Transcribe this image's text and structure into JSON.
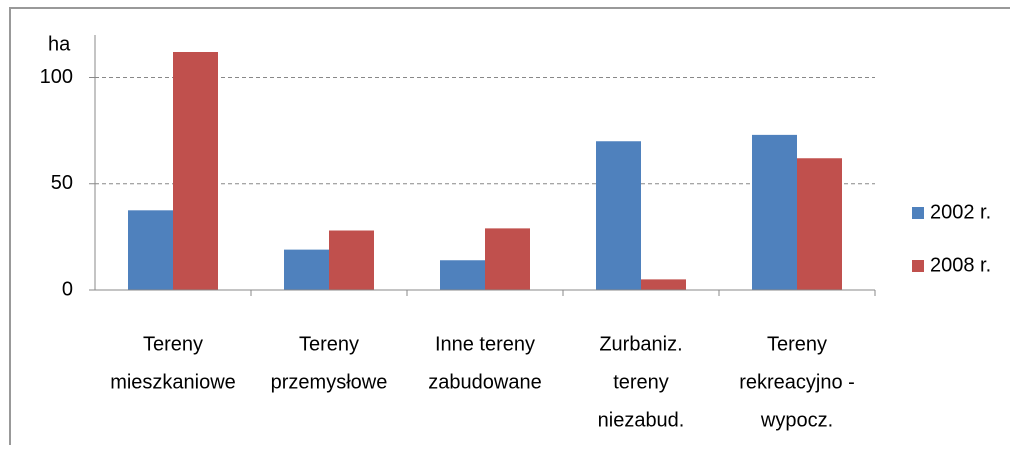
{
  "chart_data": {
    "type": "bar",
    "y_label": "ha",
    "categories": [
      [
        "Tereny",
        "mieszkaniowe"
      ],
      [
        "Tereny",
        "przemysłowe"
      ],
      [
        "Inne tereny",
        "zabudowane"
      ],
      [
        "Zurbaniz.",
        "tereny",
        "niezabud."
      ],
      [
        "Tereny",
        "rekreacyjno -",
        "wypocz."
      ]
    ],
    "series": [
      {
        "name": "2002 r.",
        "color": "#4f81bd",
        "values": [
          37.5,
          19,
          14,
          70,
          73
        ]
      },
      {
        "name": "2008 r.",
        "color": "#c0504d",
        "values": [
          112,
          28,
          29,
          5,
          62
        ]
      }
    ],
    "ylim": [
      0,
      120
    ],
    "yticks": [
      0,
      50,
      100
    ],
    "grid": true
  }
}
